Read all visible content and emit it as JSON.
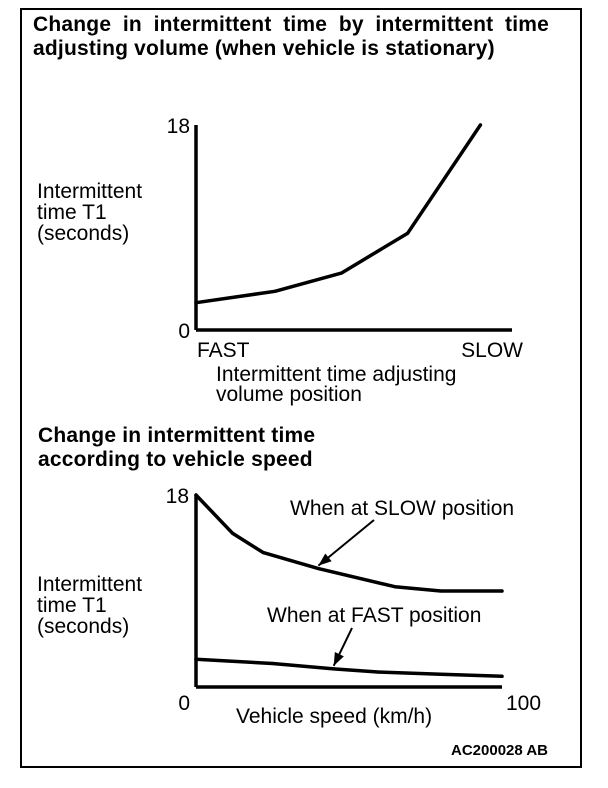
{
  "figure_id": "AC200028 AB",
  "colors": {
    "ink": "#000000",
    "paper": "#ffffff"
  },
  "chart_data": [
    {
      "type": "line",
      "title": "Change in intermittent time by intermittent time adjusting volume (when vehicle is stationary)",
      "ylabel_lines": [
        "Intermittent",
        "time T1",
        "(seconds)"
      ],
      "xlabel_lines": [
        "Intermittent time adjusting",
        "volume position"
      ],
      "y_ticks": [
        {
          "value": 0,
          "label": "0"
        },
        {
          "value": 18,
          "label": "18"
        }
      ],
      "x_tick_labels": {
        "left": "FAST",
        "right": "SLOW"
      },
      "ylim": [
        0,
        18
      ],
      "xlim": [
        0,
        100
      ],
      "grid": false,
      "series": [
        {
          "x": [
            0,
            25,
            46,
            67,
            90
          ],
          "y": [
            2.4,
            3.4,
            5.0,
            8.5,
            18.0
          ]
        }
      ]
    },
    {
      "type": "line",
      "title": "Change in intermittent time according to vehicle speed",
      "ylabel_lines": [
        "Intermittent",
        "time T1",
        "(seconds)"
      ],
      "xlabel": "Vehicle speed  (km/h)",
      "y_ticks": [
        {
          "value": 18,
          "label": "18"
        }
      ],
      "x_ticks": [
        {
          "value": 0,
          "label": "0"
        },
        {
          "value": 100,
          "label": "100"
        }
      ],
      "ylim": [
        0,
        18
      ],
      "xlim": [
        0,
        100
      ],
      "grid": false,
      "series": [
        {
          "name": "When at SLOW position",
          "x": [
            0,
            12,
            22,
            40,
            65,
            80,
            100
          ],
          "y": [
            18.0,
            14.4,
            12.6,
            11.1,
            9.4,
            9.0,
            9.0
          ]
        },
        {
          "name": "When at FAST position",
          "x": [
            0,
            25,
            45,
            60,
            80,
            100
          ],
          "y": [
            2.6,
            2.2,
            1.7,
            1.4,
            1.2,
            1.0
          ]
        }
      ]
    }
  ]
}
